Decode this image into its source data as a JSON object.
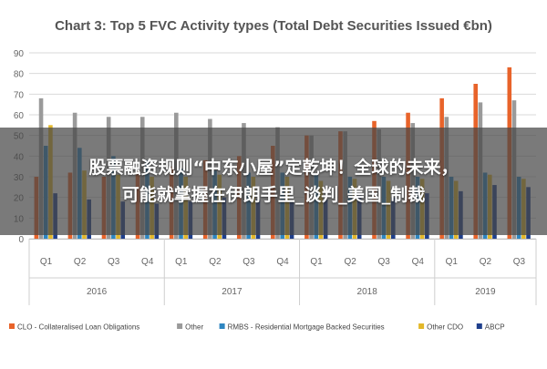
{
  "chart_data": {
    "type": "bar",
    "title": "Chart 3: Top 5 FVC Activity types (Total Debt Securities Issued €bn)",
    "ylim": [
      0,
      90
    ],
    "yticks": [
      0,
      10,
      20,
      30,
      40,
      50,
      60,
      70,
      80,
      90
    ],
    "grid": true,
    "legend_position": "bottom",
    "categories": [
      "Q1",
      "Q2",
      "Q3",
      "Q4",
      "Q1",
      "Q2",
      "Q3",
      "Q4",
      "Q1",
      "Q2",
      "Q3",
      "Q4",
      "Q1",
      "Q2",
      "Q3"
    ],
    "groups": [
      {
        "label": "2016",
        "count": 4
      },
      {
        "label": "2017",
        "count": 4
      },
      {
        "label": "2018",
        "count": 4
      },
      {
        "label": "2019",
        "count": 3
      }
    ],
    "series": [
      {
        "name": "CLO - Collateralised Loan Obligations",
        "color": "#e8632a",
        "values": [
          30,
          32,
          30,
          33,
          35,
          38,
          40,
          45,
          50,
          52,
          57,
          61,
          68,
          75,
          83
        ]
      },
      {
        "name": "Other",
        "color": "#9a9a9a",
        "values": [
          68,
          61,
          59,
          59,
          61,
          58,
          56,
          54,
          50,
          52,
          53,
          56,
          59,
          66,
          67
        ]
      },
      {
        "name": "RMBS - Residential Mortgage Backed Securities",
        "color": "#2e86c1",
        "values": [
          45,
          44,
          40,
          38,
          34,
          33,
          32,
          32,
          31,
          30,
          30,
          30,
          30,
          32,
          30
        ]
      },
      {
        "name": "Other CDO",
        "color": "#e3b82a",
        "values": [
          55,
          33,
          31,
          30,
          30,
          31,
          30,
          30,
          28,
          29,
          28,
          29,
          28,
          31,
          29
        ]
      },
      {
        "name": "ABCP",
        "color": "#1f3f8c",
        "values": [
          22,
          19,
          18,
          17,
          18,
          20,
          19,
          18,
          19,
          21,
          20,
          22,
          23,
          26,
          25
        ]
      }
    ]
  },
  "overlay": {
    "line1": "股票融资规则“中东小屋”定乾坤！全球的未来，",
    "line2": "可能就掌握在伊朗手里_谈判_美国_制裁"
  }
}
